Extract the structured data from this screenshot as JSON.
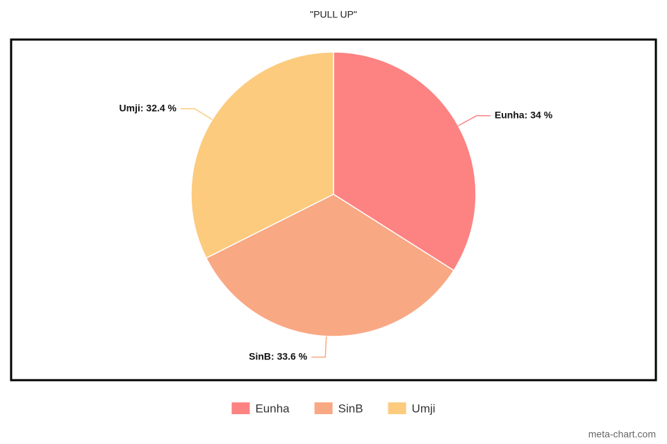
{
  "chart_data": {
    "type": "pie",
    "title": "\"PULL UP\"",
    "categories": [
      "Eunha",
      "SinB",
      "Umji"
    ],
    "values": [
      34,
      33.6,
      32.4
    ],
    "value_labels": [
      "Eunha: 34 %",
      "SinB: 33.6 %",
      "Umji: 32.4 %"
    ],
    "colors": [
      "#fd8282",
      "#f9a884",
      "#fccb7e"
    ],
    "legend": "bottom",
    "watermark": "meta-chart.com"
  }
}
